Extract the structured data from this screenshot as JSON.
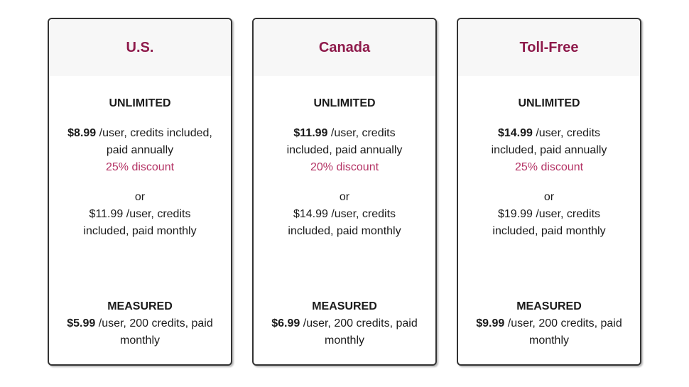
{
  "accent_colors": {
    "card_title": "#8e1a4b",
    "discount_text": "#b43365",
    "header_background": "#f7f7f7",
    "card_border": "#333333"
  },
  "cards": [
    {
      "title": "U.S.",
      "unlimited_label": "UNLIMITED",
      "annual_price": "$8.99",
      "annual_detail": " /user, credits included, paid annually",
      "discount": "25% discount",
      "or_label": "or",
      "monthly_text": "$11.99 /user, credits included, paid monthly",
      "measured_label": "MEASURED",
      "measured_price": "$5.99",
      "measured_detail": " /user, 200 credits, paid monthly"
    },
    {
      "title": "Canada",
      "unlimited_label": "UNLIMITED",
      "annual_price": "$11.99",
      "annual_detail": " /user, credits included, paid annually",
      "discount": "20% discount",
      "or_label": "or",
      "monthly_text": "$14.99 /user, credits included, paid monthly",
      "measured_label": "MEASURED",
      "measured_price": "$6.99",
      "measured_detail": " /user, 200 credits, paid monthly"
    },
    {
      "title": "Toll-Free",
      "unlimited_label": "UNLIMITED",
      "annual_price": "$14.99",
      "annual_detail": " /user, credits included, paid annually",
      "discount": "25% discount",
      "or_label": "or",
      "monthly_text": "$19.99 /user, credits included, paid monthly",
      "measured_label": "MEASURED",
      "measured_price": "$9.99",
      "measured_detail": " /user, 200 credits, paid monthly"
    }
  ]
}
